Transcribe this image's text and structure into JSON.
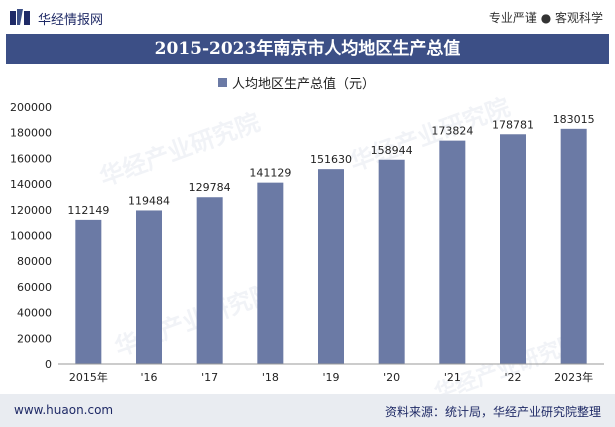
{
  "header": {
    "brand": "华经情报网",
    "tagline": "专业严谨 ● 客观科学"
  },
  "footer": {
    "site": "www.huaon.com",
    "source": "资料来源：统计局，华经产业研究院整理"
  },
  "watermark": {
    "text": "华经产业研究院",
    "url": "www.huaon.com"
  },
  "colors": {
    "title_bg": "#3c4f86",
    "bar": "#6b7aa5",
    "brand": "#1f2a66"
  },
  "chart_data": {
    "type": "bar",
    "title": "2015-2023年南京市人均地区生产总值",
    "categories": [
      "2015年",
      "'16",
      "'17",
      "'18",
      "'19",
      "'20",
      "'21",
      "'22",
      "2023年"
    ],
    "series": [
      {
        "name": "人均地区生产总值（元）",
        "values": [
          112149,
          119484,
          129784,
          141129,
          151630,
          158944,
          173824,
          178781,
          183015
        ]
      }
    ],
    "ylim": [
      0,
      200000
    ],
    "yticks": [
      0,
      20000,
      40000,
      60000,
      80000,
      100000,
      120000,
      140000,
      160000,
      180000,
      200000
    ],
    "grid": false,
    "legend": "top"
  }
}
